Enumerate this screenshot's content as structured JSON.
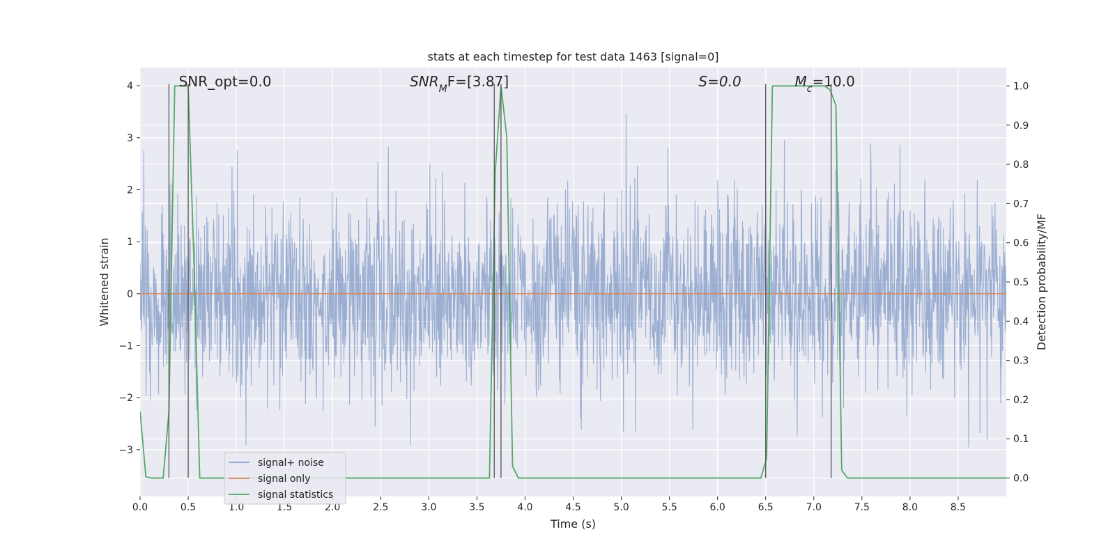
{
  "chart_data": {
    "type": "line",
    "title": "stats at each timestep for test data 1463 [signal=0]",
    "xlabel": "Time (s)",
    "ylabel": "Whitened strain",
    "y2label": "Detection probability/MF",
    "xlim": [
      0.0,
      9.0
    ],
    "ylim": [
      -3.9,
      4.35
    ],
    "y2lim": [
      -0.047,
      1.047
    ],
    "x_ticks": [
      0.0,
      0.5,
      1.0,
      1.5,
      2.0,
      2.5,
      3.0,
      3.5,
      4.0,
      4.5,
      5.0,
      5.5,
      6.0,
      6.5,
      7.0,
      7.5,
      8.0,
      8.5
    ],
    "x_tick_labels": [
      "0.0",
      "0.5",
      "1.0",
      "1.5",
      "2.0",
      "2.5",
      "3.0",
      "3.5",
      "4.0",
      "4.5",
      "5.0",
      "5.5",
      "6.0",
      "6.5",
      "7.0",
      "7.5",
      "8.0",
      "8.5"
    ],
    "y_ticks": [
      -3,
      -2,
      -1,
      0,
      1,
      2,
      3,
      4
    ],
    "y_tick_labels": [
      "−3",
      "−2",
      "−1",
      "0",
      "1",
      "2",
      "3",
      "4"
    ],
    "y2_ticks": [
      0.0,
      0.1,
      0.2,
      0.3,
      0.4,
      0.5,
      0.6,
      0.7,
      0.8,
      0.9,
      1.0
    ],
    "y2_tick_labels": [
      "0.0",
      "0.1",
      "0.2",
      "0.3",
      "0.4",
      "0.5",
      "0.6",
      "0.7",
      "0.8",
      "0.9",
      "1.0"
    ],
    "grid": true,
    "legend_placement": "lower-left",
    "annotations": [
      {
        "x": 0.2,
        "text": "SNR_opt=0.0",
        "italic": false
      },
      {
        "x": 2.6,
        "text": "SNR_MF=[3.87]",
        "italic": true
      },
      {
        "x": 5.6,
        "text": "S=0.0",
        "italic": true
      },
      {
        "x": 6.6,
        "text": "M_c=10.0",
        "italic": true
      }
    ],
    "noise_series": {
      "name": "signal+ noise",
      "color": "#4c72b0",
      "n_samples": 2300,
      "sigma": 0.9,
      "seed": 1463
    },
    "series": [
      {
        "name": "signal only",
        "color": "#dd8452",
        "x": [
          0.0,
          9.0
        ],
        "y": [
          0.0,
          0.0
        ]
      },
      {
        "name": "signal statistics",
        "color": "#55a868",
        "axis": "right",
        "x": [
          0.0,
          0.06,
          0.12,
          0.18,
          0.24,
          0.3,
          0.36,
          0.5,
          0.56,
          0.62,
          3.63,
          3.69,
          3.75,
          3.81,
          3.87,
          3.93,
          6.45,
          6.51,
          6.57,
          7.11,
          7.17,
          7.23,
          7.29,
          7.35,
          9.0
        ],
        "y": [
          0.17,
          0.003,
          0.0,
          0.0,
          0.0,
          0.17,
          1.0,
          1.0,
          0.55,
          0.0,
          0.0,
          0.78,
          1.0,
          0.87,
          0.03,
          0.0,
          0.0,
          0.05,
          1.0,
          1.0,
          0.99,
          0.95,
          0.02,
          0.0,
          0.0
        ]
      }
    ],
    "vlines": [
      0.3,
      0.5,
      3.68,
      3.75,
      6.5,
      7.18
    ]
  }
}
